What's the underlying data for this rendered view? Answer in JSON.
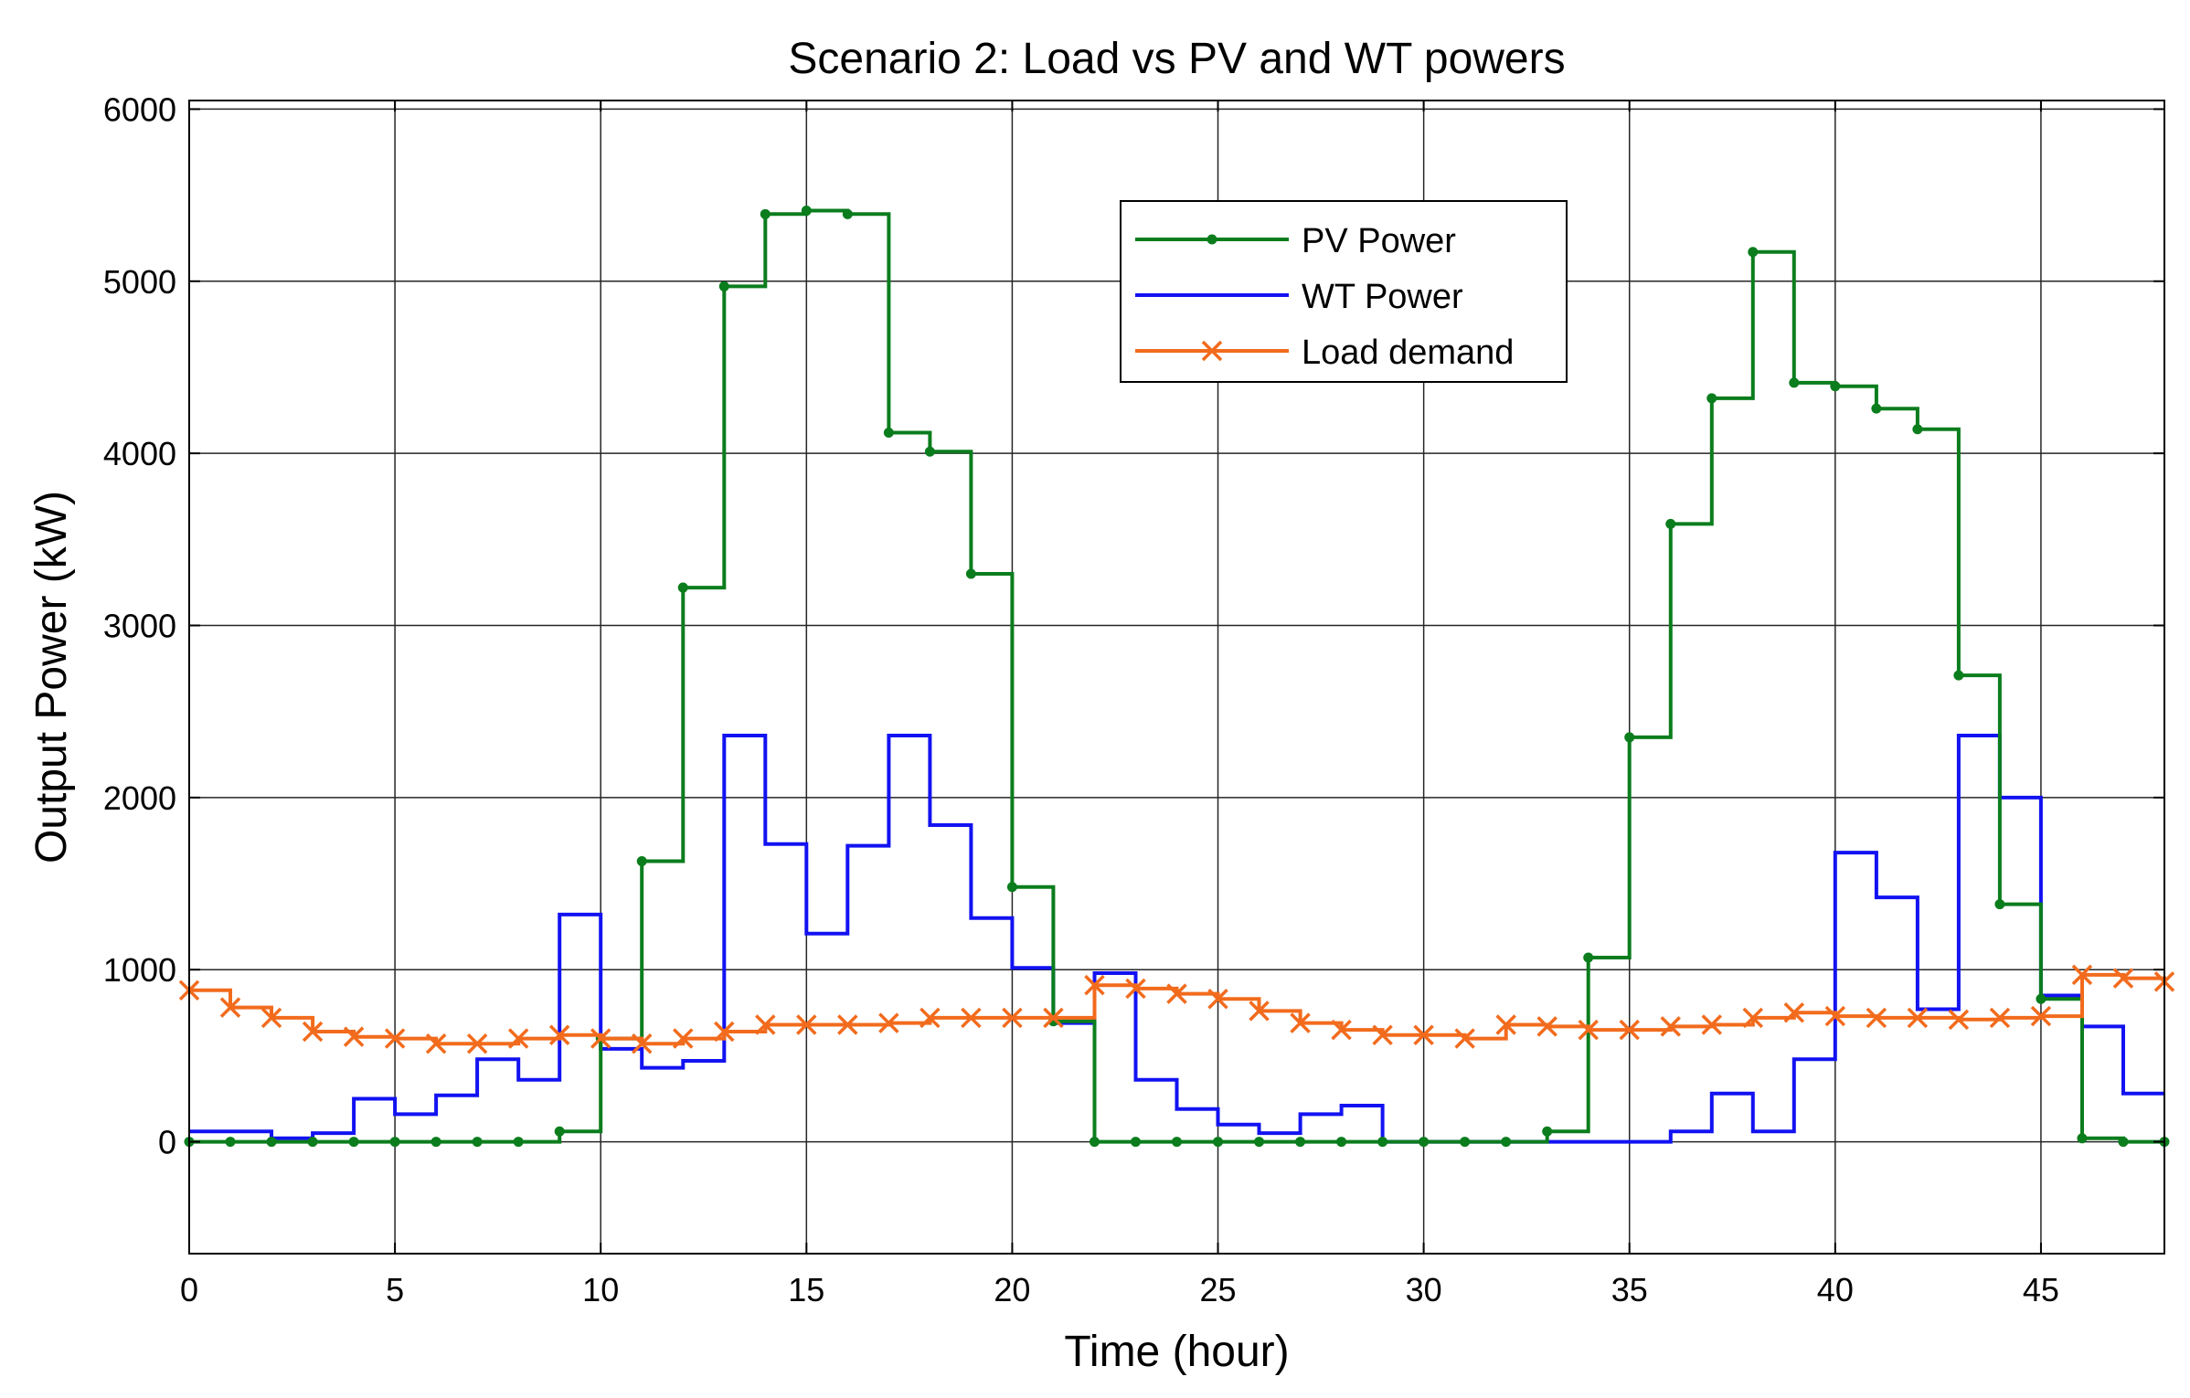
{
  "chart_data": {
    "type": "line",
    "step": true,
    "title": "Scenario 2: Load vs PV and WT powers",
    "xlabel": "Time (hour)",
    "ylabel": "Output Power (kW)",
    "xlim": [
      0,
      48
    ],
    "ylim": [
      -650,
      6050
    ],
    "xticks": [
      0,
      5,
      10,
      15,
      20,
      25,
      30,
      35,
      40,
      45
    ],
    "yticks": [
      0,
      1000,
      2000,
      3000,
      4000,
      5000,
      6000
    ],
    "grid": true,
    "legend_position": "top-center",
    "x": [
      0,
      1,
      2,
      3,
      4,
      5,
      6,
      7,
      8,
      9,
      10,
      11,
      12,
      13,
      14,
      15,
      16,
      17,
      18,
      19,
      20,
      21,
      22,
      23,
      24,
      25,
      26,
      27,
      28,
      29,
      30,
      31,
      32,
      33,
      34,
      35,
      36,
      37,
      38,
      39,
      40,
      41,
      42,
      43,
      44,
      45,
      46,
      47,
      48
    ],
    "series": [
      {
        "name": "PV Power",
        "color": "#0b7d1d",
        "marker": "dot",
        "values": [
          0,
          0,
          0,
          0,
          0,
          0,
          0,
          0,
          0,
          60,
          600,
          1630,
          3220,
          4970,
          5390,
          5410,
          5390,
          4120,
          4010,
          3300,
          1480,
          700,
          0,
          0,
          0,
          0,
          0,
          0,
          0,
          0,
          0,
          0,
          0,
          60,
          1070,
          2350,
          3590,
          4320,
          5170,
          4410,
          4390,
          4260,
          4140,
          2710,
          1380,
          830,
          20,
          0,
          0
        ]
      },
      {
        "name": "WT Power",
        "color": "#1212f2",
        "marker": "none",
        "values": [
          60,
          60,
          20,
          50,
          250,
          160,
          270,
          480,
          360,
          1320,
          540,
          430,
          470,
          2360,
          1730,
          1210,
          1720,
          2360,
          1840,
          1300,
          1010,
          690,
          980,
          360,
          190,
          100,
          50,
          160,
          210,
          0,
          0,
          0,
          0,
          0,
          0,
          0,
          60,
          280,
          60,
          480,
          1680,
          1420,
          770,
          2360,
          2000,
          850,
          670,
          280,
          280
        ]
      },
      {
        "name": "Load demand",
        "color": "#f26b1d",
        "marker": "x",
        "values": [
          880,
          780,
          720,
          640,
          610,
          600,
          570,
          570,
          600,
          620,
          600,
          570,
          600,
          640,
          680,
          680,
          680,
          690,
          720,
          720,
          720,
          720,
          910,
          890,
          860,
          830,
          760,
          690,
          650,
          620,
          620,
          600,
          680,
          670,
          650,
          650,
          670,
          680,
          720,
          750,
          730,
          720,
          720,
          710,
          720,
          730,
          970,
          950,
          930
        ]
      }
    ]
  }
}
